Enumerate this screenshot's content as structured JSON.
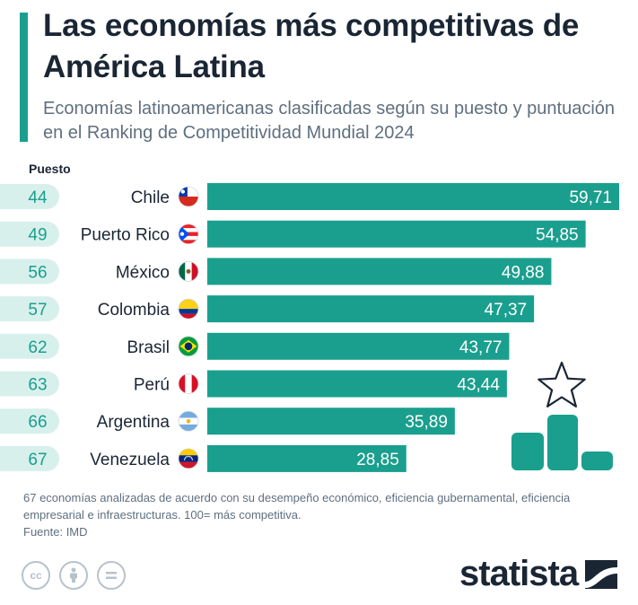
{
  "title": "Las economías más competitivas de América Latina",
  "subtitle": "Economías latinoamericanas clasificadas según su puesto y puntuación en el Ranking de Competitividad Mundial 2024",
  "column_header": "Puesto",
  "footnote": "67 economías analizadas de acuerdo con su desempeño económico, eficiencia gubernamental, eficiencia empresarial e infraestructuras. 100= más competitiva.",
  "source": "Fuente: IMD",
  "brand": "statista",
  "license_icons": [
    "cc-icon",
    "attribution-icon",
    "no-derivatives-icon"
  ],
  "colors": {
    "bar": "#1a9f8e",
    "rank_bg": "#d8f0ec",
    "rank_text": "#1a9f8e",
    "accent": "#1a9f8e"
  },
  "chart_data": {
    "type": "bar",
    "orientation": "horizontal",
    "categories": [
      "Chile",
      "Puerto Rico",
      "México",
      "Colombia",
      "Brasil",
      "Perú",
      "Argentina",
      "Venezuela"
    ],
    "ranks": [
      "44",
      "49",
      "56",
      "57",
      "62",
      "63",
      "66",
      "67"
    ],
    "values": [
      59.71,
      54.85,
      49.88,
      47.37,
      43.77,
      43.44,
      35.89,
      28.85
    ],
    "value_labels": [
      "59,71",
      "54,85",
      "49,88",
      "47,37",
      "43,77",
      "43,44",
      "35,89",
      "28,85"
    ],
    "flags": [
      "chile-flag-icon",
      "puerto-rico-flag-icon",
      "mexico-flag-icon",
      "colombia-flag-icon",
      "brazil-flag-icon",
      "peru-flag-icon",
      "argentina-flag-icon",
      "venezuela-flag-icon"
    ],
    "xlim": [
      0,
      59.71
    ],
    "grid": false,
    "legend": "none"
  }
}
